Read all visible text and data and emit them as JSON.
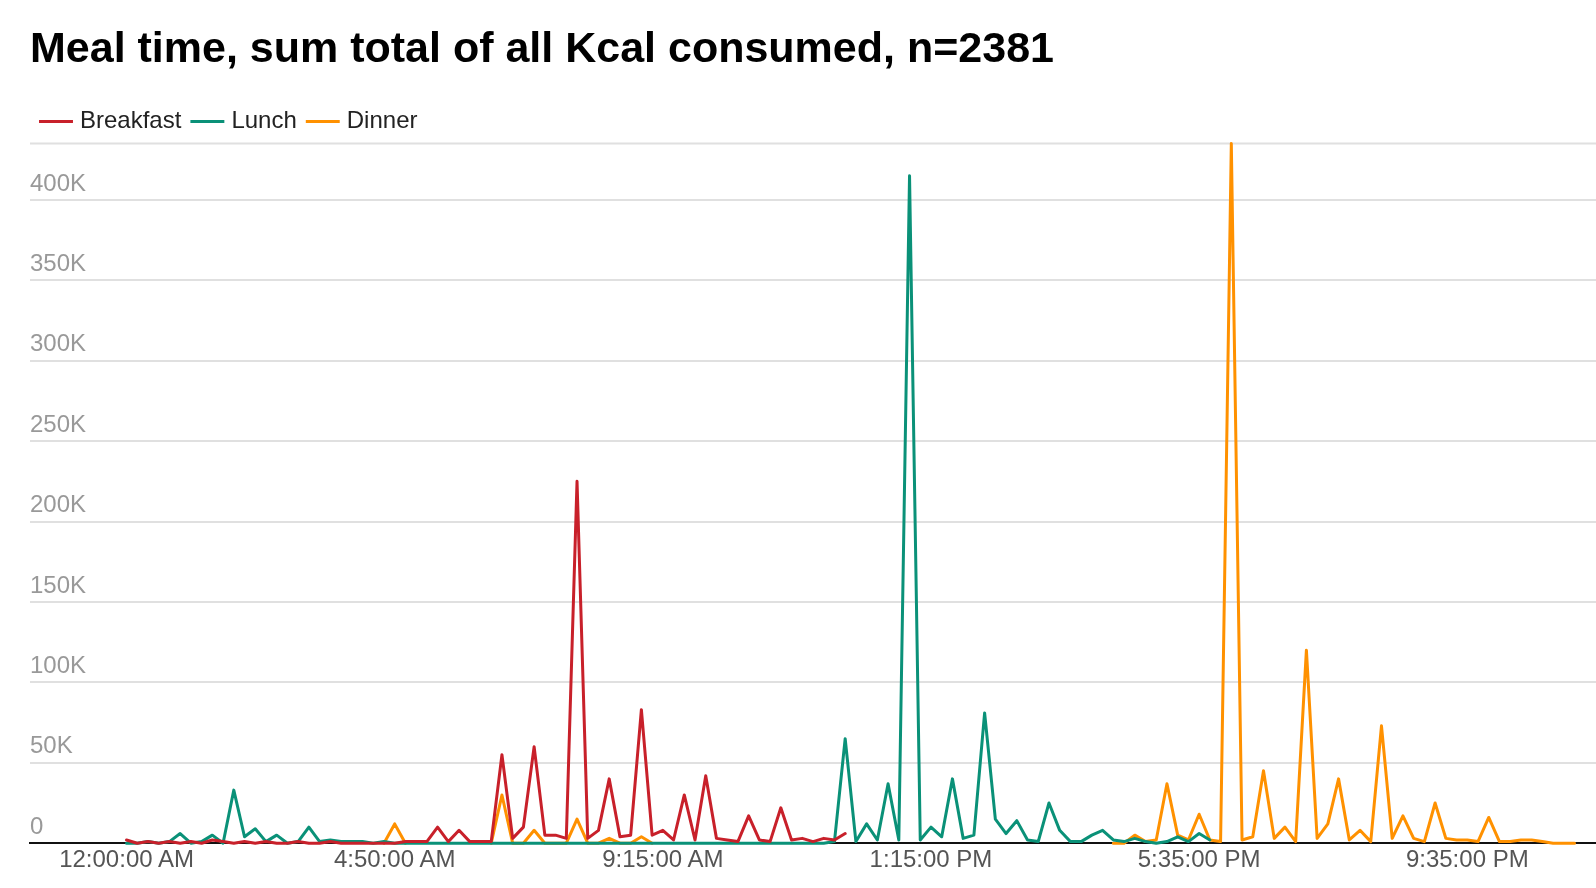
{
  "chart_data": {
    "type": "line",
    "title": "Meal time, sum total of all Kcal consumed, n=2381",
    "categories": [
      "12:00:00 AM",
      null,
      null,
      null,
      null,
      null,
      null,
      null,
      null,
      null,
      null,
      null,
      null,
      null,
      null,
      null,
      null,
      null,
      null,
      null,
      null,
      null,
      null,
      null,
      null,
      "4:50:00 AM",
      null,
      null,
      null,
      null,
      null,
      null,
      null,
      null,
      null,
      null,
      null,
      null,
      null,
      null,
      null,
      null,
      null,
      null,
      null,
      null,
      null,
      null,
      null,
      null,
      "9:15:00 AM",
      null,
      null,
      null,
      null,
      null,
      null,
      null,
      null,
      null,
      null,
      null,
      null,
      null,
      null,
      null,
      null,
      null,
      null,
      null,
      null,
      null,
      null,
      null,
      null,
      "1:15:00 PM",
      null,
      null,
      null,
      null,
      null,
      null,
      null,
      null,
      null,
      null,
      null,
      null,
      null,
      null,
      null,
      null,
      null,
      null,
      null,
      null,
      null,
      null,
      null,
      null,
      "5:35:00 PM",
      null,
      null,
      null,
      null,
      null,
      null,
      null,
      null,
      null,
      null,
      null,
      null,
      null,
      null,
      null,
      null,
      null,
      null,
      null,
      null,
      null,
      null,
      null,
      null,
      "9:35:00 PM",
      null,
      null,
      null,
      null,
      null,
      null,
      null,
      null,
      null,
      null
    ],
    "series": [
      {
        "name": "Breakfast",
        "color": "#c8202a",
        "values": [
          2000,
          0,
          1000,
          0,
          1000,
          0,
          1000,
          0,
          2000,
          1000,
          0,
          1000,
          0,
          1000,
          0,
          0,
          1000,
          0,
          0,
          1000,
          0,
          0,
          0,
          0,
          0,
          0,
          1000,
          1000,
          1000,
          10000,
          1000,
          8000,
          1000,
          1000,
          1000,
          55000,
          3000,
          10000,
          60000,
          5000,
          5000,
          3000,
          225000,
          3000,
          8000,
          40000,
          4000,
          5000,
          83000,
          5000,
          8000,
          2000,
          30000,
          2000,
          42000,
          3000,
          2000,
          1000,
          17000,
          2000,
          1000,
          22000,
          2000,
          3000,
          1000,
          3000,
          2000,
          6000,
          null,
          null,
          null,
          null,
          null,
          null,
          null,
          null,
          null,
          null,
          null,
          null,
          null,
          null,
          null,
          null,
          null,
          null,
          null,
          null,
          null,
          null,
          null,
          null,
          null,
          null,
          null,
          null,
          null,
          null,
          null,
          null,
          null,
          null,
          null,
          null,
          null,
          null,
          null,
          null,
          null,
          null,
          null,
          null,
          null,
          null,
          null,
          null,
          null,
          null,
          null,
          null,
          null,
          null,
          null,
          null,
          null,
          null,
          null,
          null,
          null,
          null,
          null,
          null,
          null,
          null,
          null,
          null
        ]
      },
      {
        "name": "Lunch",
        "color": "#0a9178",
        "values": [
          0,
          0,
          1000,
          0,
          1000,
          6000,
          0,
          1000,
          5000,
          0,
          33000,
          4000,
          9000,
          1000,
          5000,
          0,
          1000,
          10000,
          1000,
          2000,
          1000,
          1000,
          1000,
          0,
          1000,
          0,
          0,
          0,
          0,
          0,
          0,
          0,
          0,
          0,
          0,
          0,
          0,
          0,
          0,
          0,
          0,
          0,
          0,
          0,
          0,
          0,
          0,
          0,
          0,
          0,
          0,
          0,
          0,
          0,
          0,
          0,
          0,
          0,
          0,
          0,
          0,
          0,
          0,
          0,
          0,
          0,
          1000,
          65000,
          1000,
          12000,
          2000,
          37000,
          2000,
          415000,
          2000,
          10000,
          4000,
          40000,
          3000,
          5000,
          81000,
          15000,
          6000,
          14000,
          2000,
          1000,
          25000,
          8000,
          1000,
          1000,
          5000,
          8000,
          2000,
          1000,
          3000,
          1000,
          0,
          1000,
          4000,
          1000,
          6000,
          2000,
          null,
          null,
          null,
          null,
          null,
          null,
          null,
          null,
          null,
          null,
          null,
          null,
          null,
          null,
          null,
          null,
          null,
          null,
          null,
          null,
          null,
          null,
          null,
          null,
          null,
          null,
          null,
          null,
          null,
          null,
          null,
          null,
          null,
          null
        ]
      },
      {
        "name": "Dinner",
        "color": "#ff9100",
        "values": [
          null,
          null,
          null,
          null,
          null,
          null,
          null,
          null,
          null,
          null,
          null,
          null,
          null,
          null,
          null,
          null,
          null,
          null,
          null,
          null,
          null,
          null,
          null,
          null,
          0,
          12000,
          0,
          null,
          null,
          null,
          null,
          null,
          null,
          null,
          0,
          30000,
          0,
          0,
          8000,
          0,
          0,
          0,
          15000,
          0,
          0,
          3000,
          0,
          0,
          4000,
          0,
          null,
          null,
          null,
          null,
          null,
          null,
          null,
          null,
          null,
          null,
          null,
          null,
          null,
          null,
          null,
          null,
          null,
          null,
          null,
          null,
          null,
          null,
          null,
          null,
          null,
          null,
          null,
          null,
          null,
          null,
          null,
          null,
          null,
          null,
          null,
          null,
          null,
          null,
          null,
          null,
          null,
          null,
          0,
          0,
          5000,
          1000,
          2000,
          37000,
          5000,
          2000,
          18000,
          2000,
          1000,
          435000,
          2000,
          4000,
          45000,
          3000,
          10000,
          1000,
          120000,
          3000,
          12000,
          40000,
          2000,
          8000,
          1000,
          73000,
          3000,
          17000,
          3000,
          1000,
          25000,
          3000,
          2000,
          2000,
          1000,
          16000,
          1000,
          1000,
          2000,
          2000,
          1000,
          0,
          0,
          0
        ]
      }
    ],
    "ylim": [
      0,
      435000
    ],
    "yticks": [
      {
        "value": 0,
        "label": "0"
      },
      {
        "value": 50000,
        "label": "50K"
      },
      {
        "value": 100000,
        "label": "100K"
      },
      {
        "value": 150000,
        "label": "150K"
      },
      {
        "value": 200000,
        "label": "200K"
      },
      {
        "value": 250000,
        "label": "250K"
      },
      {
        "value": 300000,
        "label": "300K"
      },
      {
        "value": 350000,
        "label": "350K"
      },
      {
        "value": 400000,
        "label": "400K"
      }
    ],
    "grid": "y",
    "legend": "top left",
    "marker": "none"
  }
}
